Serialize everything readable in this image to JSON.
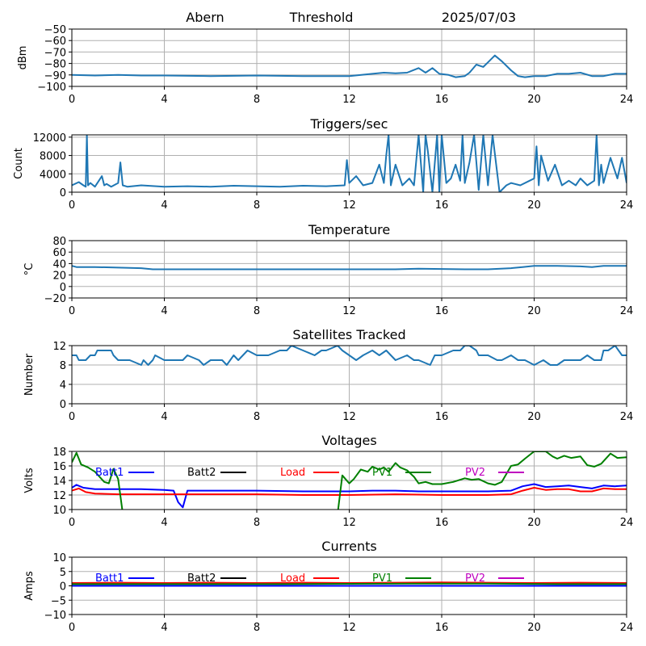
{
  "header": {
    "station": "Abern",
    "mode": "Threshold",
    "date": "2025/07/03"
  },
  "colors": {
    "data": "#1f77b4",
    "grid": "#b0b0b0",
    "batt1": "#0000ff",
    "batt2": "#000000",
    "load": "#ff0000",
    "pv1": "#008000",
    "pv2": "#bf00bf"
  },
  "chart_data": [
    {
      "id": "signal",
      "type": "line",
      "title": "",
      "ylabel": "dBm",
      "xlim": [
        0,
        24
      ],
      "ylim": [
        -100,
        -50
      ],
      "xticks": [
        0,
        4,
        8,
        12,
        16,
        20,
        24
      ],
      "yticks": [
        -50,
        -60,
        -70,
        -80,
        -90,
        -100
      ],
      "grid": true,
      "series": [
        {
          "x": [
            0,
            1,
            2,
            3,
            4,
            6,
            8,
            10,
            11,
            12,
            13,
            13.5,
            14,
            14.5,
            15,
            15.3,
            15.6,
            15.9,
            16.3,
            16.6,
            17,
            17.2,
            17.5,
            17.8,
            18,
            18.3,
            18.6,
            19,
            19.3,
            19.6,
            20,
            20.5,
            21,
            21.5,
            22,
            22.5,
            23,
            23.5,
            24
          ],
          "y": [
            -90,
            -90.5,
            -90,
            -90.5,
            -90.5,
            -91,
            -90.5,
            -91,
            -91,
            -91,
            -89,
            -88,
            -88.5,
            -88,
            -84,
            -88,
            -84,
            -89,
            -90,
            -92,
            -91,
            -88,
            -81,
            -83,
            -79,
            -73,
            -78,
            -86,
            -91,
            -92,
            -91,
            -91,
            -89,
            -89,
            -88,
            -91,
            -91,
            -89,
            -89
          ]
        }
      ]
    },
    {
      "id": "triggers",
      "type": "line",
      "title": "Triggers/sec",
      "ylabel": "Count",
      "xlim": [
        0,
        24
      ],
      "ylim": [
        0,
        12500
      ],
      "xticks": [
        0,
        4,
        8,
        12,
        16,
        20,
        24
      ],
      "yticks": [
        0,
        4000,
        8000,
        12000
      ],
      "grid": true,
      "series": [
        {
          "x": [
            0,
            0.3,
            0.5,
            0.6,
            0.65,
            0.7,
            0.8,
            1,
            1.3,
            1.4,
            1.5,
            1.7,
            2,
            2.1,
            2.2,
            2.4,
            3,
            4,
            5,
            6,
            7,
            8,
            9,
            10,
            11,
            11.8,
            11.9,
            12,
            12.3,
            12.6,
            13,
            13.3,
            13.5,
            13.6,
            13.7,
            13.8,
            14,
            14.3,
            14.6,
            14.8,
            15,
            15.2,
            15.3,
            15.4,
            15.6,
            15.8,
            15.9,
            16,
            16.2,
            16.4,
            16.6,
            16.8,
            16.9,
            17,
            17.2,
            17.4,
            17.6,
            17.8,
            18,
            18.2,
            18.5,
            18.8,
            19,
            19.4,
            19.8,
            20,
            20.1,
            20.2,
            20.3,
            20.6,
            20.9,
            21.2,
            21.5,
            21.8,
            22,
            22.3,
            22.6,
            22.7,
            22.8,
            22.9,
            23,
            23.3,
            23.6,
            23.8,
            24
          ],
          "y": [
            1500,
            2200,
            1500,
            1200,
            12500,
            1500,
            2000,
            1200,
            3500,
            1500,
            1800,
            1200,
            2000,
            6500,
            1500,
            1200,
            1500,
            1200,
            1300,
            1200,
            1400,
            1300,
            1200,
            1400,
            1300,
            1500,
            7000,
            2000,
            3500,
            1500,
            2000,
            6000,
            2000,
            8000,
            12500,
            1500,
            6000,
            1500,
            3000,
            1500,
            12500,
            0,
            12500,
            9000,
            0,
            12500,
            0,
            12500,
            2000,
            3000,
            6000,
            2500,
            12500,
            2000,
            6500,
            12500,
            500,
            12500,
            1500,
            12500,
            0,
            1500,
            2000,
            1500,
            2500,
            3000,
            10000,
            1500,
            8000,
            2500,
            6000,
            1500,
            2500,
            1500,
            3000,
            1500,
            2500,
            12500,
            1500,
            6000,
            2000,
            7500,
            3000,
            7500,
            2000
          ]
        }
      ]
    },
    {
      "id": "temperature",
      "type": "line",
      "title": "Temperature",
      "ylabel": "°C",
      "xlim": [
        0,
        24
      ],
      "ylim": [
        -20,
        80
      ],
      "xticks": [
        0,
        4,
        8,
        12,
        16,
        20,
        24
      ],
      "yticks": [
        -20,
        0,
        20,
        40,
        60,
        80
      ],
      "grid": true,
      "series": [
        {
          "x": [
            0,
            0.2,
            1,
            2,
            3,
            3.5,
            6,
            10,
            14,
            15,
            17,
            18,
            19,
            19.5,
            20,
            21,
            22,
            22.5,
            23,
            24
          ],
          "y": [
            36,
            34,
            34,
            33,
            32,
            30,
            30,
            30,
            30,
            31,
            30,
            30,
            32,
            34,
            36,
            36,
            35,
            34,
            36,
            36
          ]
        }
      ]
    },
    {
      "id": "satellites",
      "type": "line",
      "title": "Satellites Tracked",
      "ylabel": "Number",
      "xlim": [
        0,
        24
      ],
      "ylim": [
        0,
        12
      ],
      "xticks": [
        0,
        4,
        8,
        12,
        16,
        20,
        24
      ],
      "yticks": [
        0,
        4,
        8,
        12
      ],
      "grid": true,
      "series": [
        {
          "x": [
            0,
            0.2,
            0.3,
            0.6,
            0.8,
            1,
            1.1,
            1.7,
            1.8,
            2,
            2.2,
            2.4,
            2.5,
            3,
            3.1,
            3.3,
            3.5,
            3.6,
            4,
            4.5,
            4.8,
            5,
            5.5,
            5.7,
            6,
            6.5,
            6.7,
            7,
            7.2,
            7.4,
            7.6,
            8,
            8.5,
            9,
            9.3,
            9.5,
            10,
            10.5,
            10.8,
            11,
            11.5,
            11.7,
            12,
            12.3,
            12.6,
            13,
            13.3,
            13.6,
            14,
            14.5,
            14.8,
            15,
            15.5,
            15.7,
            16,
            16.5,
            16.8,
            17,
            17.2,
            17.5,
            17.6,
            18,
            18.4,
            18.6,
            19,
            19.3,
            19.6,
            20,
            20.4,
            20.7,
            21,
            21.3,
            21.6,
            22,
            22.3,
            22.6,
            22.9,
            23,
            23.2,
            23.5,
            23.8,
            24
          ],
          "y": [
            10,
            10,
            9,
            9,
            10,
            10,
            11,
            11,
            10,
            9,
            9,
            9,
            9,
            8,
            9,
            8,
            9,
            10,
            9,
            9,
            9,
            10,
            9,
            8,
            9,
            9,
            8,
            10,
            9,
            10,
            11,
            10,
            10,
            11,
            11,
            12,
            11,
            10,
            11,
            11,
            12,
            11,
            10,
            9,
            10,
            11,
            10,
            11,
            9,
            10,
            9,
            9,
            8,
            10,
            10,
            11,
            11,
            12,
            12,
            11,
            10,
            10,
            9,
            9,
            10,
            9,
            9,
            8,
            9,
            8,
            8,
            9,
            9,
            9,
            10,
            9,
            9,
            11,
            11,
            12,
            10,
            10
          ]
        }
      ]
    },
    {
      "id": "voltages",
      "type": "line",
      "title": "Voltages",
      "ylabel": "Volts",
      "xlim": [
        0,
        24
      ],
      "ylim": [
        10,
        18
      ],
      "xticks": [
        0,
        4,
        8,
        12,
        16,
        20,
        24
      ],
      "yticks": [
        10,
        12,
        14,
        16,
        18
      ],
      "grid": true,
      "legend": [
        "Batt1",
        "Batt2",
        "Load",
        "PV1",
        "PV2"
      ],
      "legend_position": "top",
      "series": [
        {
          "name": "Batt1",
          "color": "#0000ff",
          "x": [
            0,
            0.2,
            0.5,
            1,
            2,
            3,
            4,
            4.4,
            4.6,
            4.8,
            5,
            6,
            8,
            10,
            12,
            13,
            14,
            15,
            16,
            17,
            18,
            19,
            19.5,
            20,
            20.5,
            21,
            21.5,
            22,
            22.5,
            23,
            23.5,
            24
          ],
          "y": [
            13,
            13.4,
            13,
            12.8,
            12.8,
            12.8,
            12.7,
            12.6,
            11,
            10.3,
            12.6,
            12.6,
            12.6,
            12.5,
            12.5,
            12.6,
            12.6,
            12.5,
            12.5,
            12.5,
            12.5,
            12.6,
            13.2,
            13.5,
            13.1,
            13.2,
            13.3,
            13.1,
            12.9,
            13.3,
            13.2,
            13.3
          ]
        },
        {
          "name": "Load",
          "color": "#ff0000",
          "x": [
            0,
            0.3,
            0.6,
            1,
            2,
            4,
            6,
            8,
            10,
            12,
            14,
            16,
            18,
            19,
            19.5,
            20,
            20.5,
            21,
            21.5,
            22,
            22.5,
            23,
            23.5,
            24
          ],
          "y": [
            12.6,
            12.9,
            12.4,
            12.2,
            12.1,
            12.1,
            12.1,
            12.1,
            12,
            12,
            12.1,
            12,
            12,
            12.1,
            12.6,
            13,
            12.7,
            12.8,
            12.8,
            12.5,
            12.5,
            12.9,
            12.8,
            12.8
          ]
        },
        {
          "name": "PV1",
          "color": "#008000",
          "x": [
            0,
            0.2,
            0.4,
            0.7,
            1,
            1.2,
            1.4,
            1.6,
            1.8,
            2,
            2.2,
            11.5,
            11.7,
            12,
            12.2,
            12.5,
            12.8,
            13,
            13.3,
            13.5,
            13.7,
            14,
            14.2,
            14.5,
            14.8,
            15,
            15.3,
            15.6,
            16,
            16.5,
            17,
            17.3,
            17.6,
            18,
            18.3,
            18.6,
            19,
            19.3,
            19.6,
            20,
            20.5,
            20.8,
            21,
            21.3,
            21.6,
            22,
            22.3,
            22.6,
            22.9,
            23.3,
            23.6,
            24
          ],
          "y": [
            16.5,
            17.8,
            16.2,
            15.8,
            15.2,
            14.5,
            13.8,
            13.6,
            15.6,
            14.2,
            9.5,
            9.5,
            14.7,
            13.6,
            14.2,
            15.5,
            15.2,
            15.9,
            15.5,
            15.8,
            15.2,
            16.4,
            15.8,
            15.4,
            14.5,
            13.6,
            13.8,
            13.5,
            13.5,
            13.8,
            14.3,
            14.1,
            14.2,
            13.6,
            13.4,
            13.8,
            16,
            16.2,
            17,
            18,
            18,
            17.3,
            17,
            17.4,
            17.1,
            17.3,
            16.1,
            15.9,
            16.3,
            17.7,
            17.1,
            17.2
          ]
        },
        {
          "name": "Batt2",
          "color": "#000000",
          "x": [],
          "y": []
        },
        {
          "name": "PV2",
          "color": "#bf00bf",
          "x": [],
          "y": []
        }
      ]
    },
    {
      "id": "currents",
      "type": "line",
      "title": "Currents",
      "ylabel": "Amps",
      "xlim": [
        0,
        24
      ],
      "ylim": [
        -10,
        10
      ],
      "xticks": [
        0,
        4,
        8,
        12,
        16,
        20,
        24
      ],
      "yticks": [
        -10,
        -5,
        0,
        5,
        10
      ],
      "grid": true,
      "legend": [
        "Batt1",
        "Batt2",
        "Load",
        "PV1",
        "PV2"
      ],
      "legend_position": "top",
      "series": [
        {
          "name": "Load",
          "color": "#ff0000",
          "x": [
            0,
            2,
            4,
            6,
            8,
            10,
            12,
            14,
            16,
            18,
            20,
            22,
            24
          ],
          "y": [
            1.0,
            1.1,
            1.0,
            1.1,
            1.0,
            1.1,
            1.0,
            1.1,
            1.2,
            1.1,
            1.0,
            1.1,
            1.0
          ]
        },
        {
          "name": "PV1",
          "color": "#008000",
          "x": [
            0,
            3,
            6,
            9,
            12,
            15,
            18,
            21,
            24
          ],
          "y": [
            0.6,
            0.6,
            0.6,
            0.6,
            0.7,
            0.8,
            0.8,
            0.6,
            0.6
          ]
        },
        {
          "name": "Batt1",
          "color": "#0000ff",
          "x": [
            0,
            4,
            8,
            12,
            16,
            20,
            24
          ],
          "y": [
            0,
            0,
            0,
            0,
            0,
            0,
            0
          ]
        },
        {
          "name": "Batt2",
          "color": "#000000",
          "x": [],
          "y": []
        },
        {
          "name": "PV2",
          "color": "#bf00bf",
          "x": [],
          "y": []
        }
      ]
    }
  ]
}
